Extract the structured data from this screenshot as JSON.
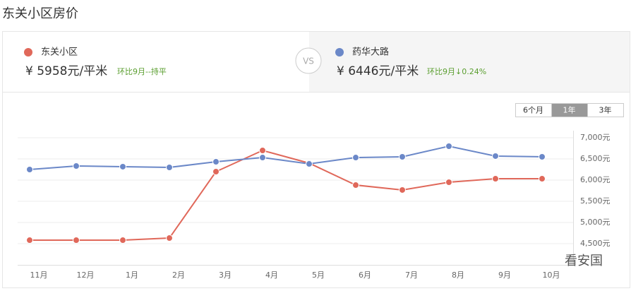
{
  "header": {
    "title": "东关小区房价"
  },
  "compare": {
    "left": {
      "price": "¥ 5958元/平米",
      "change": "环比9月--持平"
    },
    "vs": "VS",
    "right": {
      "price": "¥ 6446元/平米",
      "change": "环比9月↓0.24%"
    }
  },
  "range_buttons": [
    "6个月",
    "1年",
    "3年"
  ],
  "watermark": "看安国",
  "chart_data": {
    "type": "line",
    "categories": [
      "11月",
      "12月",
      "1月",
      "2月",
      "3月",
      "4月",
      "5月",
      "6月",
      "7月",
      "8月",
      "9月",
      "10月"
    ],
    "series": [
      {
        "name": "东关小区",
        "color": "#e0685a",
        "values": [
          4583,
          4583,
          4583,
          4633,
          6200,
          6700,
          6400,
          5883,
          5767,
          5950,
          6033,
          6033
        ]
      },
      {
        "name": "药华大路",
        "color": "#6b88c8",
        "values": [
          6250,
          6333,
          6317,
          6300,
          6433,
          6533,
          6383,
          6533,
          6550,
          6800,
          6567,
          6550
        ]
      }
    ],
    "ylim": [
      4000,
      7000
    ],
    "yticks": [
      {
        "value": 4500,
        "label": "4,500元"
      },
      {
        "value": 5000,
        "label": "5,000元"
      },
      {
        "value": 5500,
        "label": "5,500元"
      },
      {
        "value": 6000,
        "label": "6,000元"
      },
      {
        "value": 6500,
        "label": "6,500元"
      },
      {
        "value": 7000,
        "label": "7,000元"
      }
    ],
    "grid": true
  }
}
